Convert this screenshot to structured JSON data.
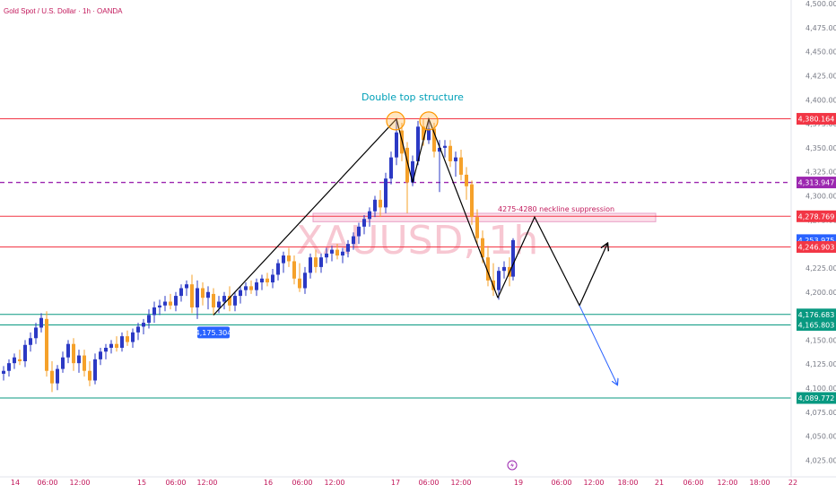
{
  "header": {
    "symbol_title": "Gold Spot / U.S. Dollar · 1h · OANDA"
  },
  "watermark": "XAUUSD, 1h",
  "chart_data": {
    "type": "candlestick",
    "timeframe": "1h",
    "ylim": [
      4018,
      4500
    ],
    "y_ticks": [
      "4,500.000",
      "4,475.000",
      "4,450.000",
      "4,425.000",
      "4,400.000",
      "4,375.000",
      "4,350.000",
      "4,325.000",
      "4,300.000",
      "4,275.000",
      "4,250.000",
      "4,225.000",
      "4,200.000",
      "4,175.000",
      "4,150.000",
      "4,125.000",
      "4,100.000",
      "4,075.000",
      "4,050.000",
      "4,025.000"
    ],
    "x_ticks": [
      {
        "label": "14",
        "t": 17
      },
      {
        "label": "06:00",
        "t": 53
      },
      {
        "label": "12:00",
        "t": 89
      },
      {
        "label": "15",
        "t": 158
      },
      {
        "label": "06:00",
        "t": 196
      },
      {
        "label": "12:00",
        "t": 231
      },
      {
        "label": "16",
        "t": 299
      },
      {
        "label": "06:00",
        "t": 337
      },
      {
        "label": "12:00",
        "t": 373
      },
      {
        "label": "17",
        "t": 441
      },
      {
        "label": "06:00",
        "t": 478
      },
      {
        "label": "12:00",
        "t": 514
      },
      {
        "label": "19",
        "t": 578
      },
      {
        "label": "06:00",
        "t": 626
      },
      {
        "label": "12:00",
        "t": 662
      },
      {
        "label": "18:00",
        "t": 700
      },
      {
        "label": "21",
        "t": 735
      },
      {
        "label": "06:00",
        "t": 773
      },
      {
        "label": "12:00",
        "t": 811
      },
      {
        "label": "18:00",
        "t": 847
      },
      {
        "label": "22",
        "t": 884
      }
    ],
    "price_levels": [
      {
        "price": 4380.164,
        "label": "4,380.164",
        "color": "#f23645",
        "style": "solid"
      },
      {
        "price": 4313.947,
        "label": "4,313.947",
        "color": "#9c27b0",
        "style": "dashed"
      },
      {
        "price": 4278.769,
        "label": "4,278.769",
        "color": "#f23645",
        "style": "solid"
      },
      {
        "price": 4253.975,
        "label": "4,253.975",
        "color": "#2962ff",
        "style": "none"
      },
      {
        "price": 4246.903,
        "label": "4,246.903",
        "color": "#f23645",
        "style": "solid"
      },
      {
        "price": 4176.683,
        "label": "4,176.683",
        "color": "#089981",
        "style": "solid"
      },
      {
        "price": 4165.803,
        "label": "4,165.803",
        "color": "#089981",
        "style": "solid"
      },
      {
        "price": 4089.772,
        "label": "4,089.772",
        "color": "#089981",
        "style": "solid"
      }
    ],
    "candles": [
      {
        "t": 4,
        "o": 4115,
        "h": 4123,
        "l": 4108,
        "c": 4118
      },
      {
        "t": 10,
        "o": 4118,
        "h": 4130,
        "l": 4112,
        "c": 4126
      },
      {
        "t": 16,
        "o": 4126,
        "h": 4136,
        "l": 4120,
        "c": 4132
      },
      {
        "t": 22,
        "o": 4130,
        "h": 4140,
        "l": 4124,
        "c": 4128
      },
      {
        "t": 28,
        "o": 4128,
        "h": 4150,
        "l": 4122,
        "c": 4145
      },
      {
        "t": 34,
        "o": 4145,
        "h": 4158,
        "l": 4138,
        "c": 4152
      },
      {
        "t": 40,
        "o": 4152,
        "h": 4168,
        "l": 4146,
        "c": 4163
      },
      {
        "t": 46,
        "o": 4163,
        "h": 4178,
        "l": 4158,
        "c": 4173
      },
      {
        "t": 52,
        "o": 4172,
        "h": 4180,
        "l": 4112,
        "c": 4118
      },
      {
        "t": 58,
        "o": 4118,
        "h": 4128,
        "l": 4096,
        "c": 4105
      },
      {
        "t": 64,
        "o": 4105,
        "h": 4124,
        "l": 4098,
        "c": 4120
      },
      {
        "t": 70,
        "o": 4120,
        "h": 4138,
        "l": 4116,
        "c": 4132
      },
      {
        "t": 76,
        "o": 4132,
        "h": 4150,
        "l": 4126,
        "c": 4146
      },
      {
        "t": 82,
        "o": 4146,
        "h": 4152,
        "l": 4118,
        "c": 4126
      },
      {
        "t": 88,
        "o": 4126,
        "h": 4140,
        "l": 4116,
        "c": 4134
      },
      {
        "t": 94,
        "o": 4134,
        "h": 4140,
        "l": 4112,
        "c": 4118
      },
      {
        "t": 100,
        "o": 4118,
        "h": 4128,
        "l": 4102,
        "c": 4108
      },
      {
        "t": 106,
        "o": 4108,
        "h": 4136,
        "l": 4104,
        "c": 4130
      },
      {
        "t": 112,
        "o": 4130,
        "h": 4142,
        "l": 4124,
        "c": 4138
      },
      {
        "t": 118,
        "o": 4138,
        "h": 4146,
        "l": 4130,
        "c": 4142
      },
      {
        "t": 124,
        "o": 4142,
        "h": 4150,
        "l": 4136,
        "c": 4146
      },
      {
        "t": 130,
        "o": 4146,
        "h": 4154,
        "l": 4138,
        "c": 4142
      },
      {
        "t": 136,
        "o": 4142,
        "h": 4158,
        "l": 4138,
        "c": 4154
      },
      {
        "t": 142,
        "o": 4154,
        "h": 4160,
        "l": 4144,
        "c": 4148
      },
      {
        "t": 148,
        "o": 4148,
        "h": 4162,
        "l": 4142,
        "c": 4158
      },
      {
        "t": 154,
        "o": 4158,
        "h": 4168,
        "l": 4150,
        "c": 4164
      },
      {
        "t": 160,
        "o": 4164,
        "h": 4172,
        "l": 4156,
        "c": 4168
      },
      {
        "t": 166,
        "o": 4168,
        "h": 4182,
        "l": 4162,
        "c": 4176
      },
      {
        "t": 172,
        "o": 4176,
        "h": 4190,
        "l": 4168,
        "c": 4184
      },
      {
        "t": 178,
        "o": 4184,
        "h": 4192,
        "l": 4176,
        "c": 4186
      },
      {
        "t": 184,
        "o": 4186,
        "h": 4196,
        "l": 4180,
        "c": 4190
      },
      {
        "t": 190,
        "o": 4190,
        "h": 4198,
        "l": 4182,
        "c": 4186
      },
      {
        "t": 196,
        "o": 4186,
        "h": 4200,
        "l": 4180,
        "c": 4196
      },
      {
        "t": 202,
        "o": 4196,
        "h": 4208,
        "l": 4190,
        "c": 4204
      },
      {
        "t": 208,
        "o": 4204,
        "h": 4212,
        "l": 4196,
        "c": 4208
      },
      {
        "t": 214,
        "o": 4208,
        "h": 4218,
        "l": 4178,
        "c": 4184
      },
      {
        "t": 220,
        "o": 4184,
        "h": 4212,
        "l": 4172,
        "c": 4204
      },
      {
        "t": 226,
        "o": 4204,
        "h": 4210,
        "l": 4186,
        "c": 4194
      },
      {
        "t": 232,
        "o": 4194,
        "h": 4206,
        "l": 4182,
        "c": 4200
      },
      {
        "t": 238,
        "o": 4198,
        "h": 4204,
        "l": 4176,
        "c": 4184
      },
      {
        "t": 244,
        "o": 4184,
        "h": 4196,
        "l": 4178,
        "c": 4190
      },
      {
        "t": 250,
        "o": 4190,
        "h": 4200,
        "l": 4182,
        "c": 4196
      },
      {
        "t": 256,
        "o": 4196,
        "h": 4206,
        "l": 4180,
        "c": 4186
      },
      {
        "t": 262,
        "o": 4186,
        "h": 4200,
        "l": 4180,
        "c": 4196
      },
      {
        "t": 268,
        "o": 4196,
        "h": 4206,
        "l": 4188,
        "c": 4202
      },
      {
        "t": 274,
        "o": 4202,
        "h": 4210,
        "l": 4196,
        "c": 4206
      },
      {
        "t": 280,
        "o": 4206,
        "h": 4212,
        "l": 4198,
        "c": 4202
      },
      {
        "t": 286,
        "o": 4202,
        "h": 4214,
        "l": 4196,
        "c": 4210
      },
      {
        "t": 292,
        "o": 4210,
        "h": 4218,
        "l": 4202,
        "c": 4214
      },
      {
        "t": 298,
        "o": 4214,
        "h": 4220,
        "l": 4206,
        "c": 4210
      },
      {
        "t": 304,
        "o": 4210,
        "h": 4224,
        "l": 4204,
        "c": 4218
      },
      {
        "t": 310,
        "o": 4218,
        "h": 4234,
        "l": 4212,
        "c": 4230
      },
      {
        "t": 316,
        "o": 4230,
        "h": 4242,
        "l": 4220,
        "c": 4238
      },
      {
        "t": 322,
        "o": 4238,
        "h": 4246,
        "l": 4226,
        "c": 4232
      },
      {
        "t": 328,
        "o": 4232,
        "h": 4238,
        "l": 4208,
        "c": 4214
      },
      {
        "t": 334,
        "o": 4214,
        "h": 4230,
        "l": 4200,
        "c": 4204
      },
      {
        "t": 340,
        "o": 4204,
        "h": 4226,
        "l": 4198,
        "c": 4220
      },
      {
        "t": 346,
        "o": 4220,
        "h": 4240,
        "l": 4214,
        "c": 4236
      },
      {
        "t": 352,
        "o": 4236,
        "h": 4244,
        "l": 4220,
        "c": 4226
      },
      {
        "t": 358,
        "o": 4226,
        "h": 4240,
        "l": 4220,
        "c": 4236
      },
      {
        "t": 364,
        "o": 4236,
        "h": 4246,
        "l": 4230,
        "c": 4240
      },
      {
        "t": 370,
        "o": 4240,
        "h": 4248,
        "l": 4232,
        "c": 4244
      },
      {
        "t": 376,
        "o": 4244,
        "h": 4250,
        "l": 4234,
        "c": 4238
      },
      {
        "t": 382,
        "o": 4238,
        "h": 4246,
        "l": 4230,
        "c": 4242
      },
      {
        "t": 388,
        "o": 4242,
        "h": 4254,
        "l": 4236,
        "c": 4250
      },
      {
        "t": 394,
        "o": 4250,
        "h": 4262,
        "l": 4244,
        "c": 4258
      },
      {
        "t": 400,
        "o": 4258,
        "h": 4272,
        "l": 4250,
        "c": 4268
      },
      {
        "t": 406,
        "o": 4268,
        "h": 4280,
        "l": 4260,
        "c": 4276
      },
      {
        "t": 412,
        "o": 4276,
        "h": 4288,
        "l": 4268,
        "c": 4284
      },
      {
        "t": 418,
        "o": 4284,
        "h": 4300,
        "l": 4278,
        "c": 4296
      },
      {
        "t": 424,
        "o": 4296,
        "h": 4306,
        "l": 4278,
        "c": 4288
      },
      {
        "t": 430,
        "o": 4288,
        "h": 4324,
        "l": 4282,
        "c": 4318
      },
      {
        "t": 436,
        "o": 4318,
        "h": 4346,
        "l": 4312,
        "c": 4340
      },
      {
        "t": 442,
        "o": 4340,
        "h": 4380,
        "l": 4332,
        "c": 4366
      },
      {
        "t": 448,
        "o": 4368,
        "h": 4376,
        "l": 4336,
        "c": 4344
      },
      {
        "t": 454,
        "o": 4350,
        "h": 4356,
        "l": 4282,
        "c": 4314
      },
      {
        "t": 460,
        "o": 4314,
        "h": 4342,
        "l": 4310,
        "c": 4336
      },
      {
        "t": 466,
        "o": 4336,
        "h": 4378,
        "l": 4332,
        "c": 4372
      },
      {
        "t": 472,
        "o": 4372,
        "h": 4380,
        "l": 4352,
        "c": 4358
      },
      {
        "t": 478,
        "o": 4358,
        "h": 4378,
        "l": 4354,
        "c": 4370
      },
      {
        "t": 484,
        "o": 4370,
        "h": 4376,
        "l": 4340,
        "c": 4346
      },
      {
        "t": 490,
        "o": 4346,
        "h": 4358,
        "l": 4304,
        "c": 4350
      },
      {
        "t": 496,
        "o": 4350,
        "h": 4358,
        "l": 4340,
        "c": 4352
      },
      {
        "t": 502,
        "o": 4352,
        "h": 4358,
        "l": 4330,
        "c": 4336
      },
      {
        "t": 508,
        "o": 4336,
        "h": 4346,
        "l": 4320,
        "c": 4340
      },
      {
        "t": 514,
        "o": 4340,
        "h": 4348,
        "l": 4316,
        "c": 4322
      },
      {
        "t": 520,
        "o": 4322,
        "h": 4330,
        "l": 4296,
        "c": 4310
      },
      {
        "t": 526,
        "o": 4312,
        "h": 4316,
        "l": 4270,
        "c": 4278
      },
      {
        "t": 532,
        "o": 4278,
        "h": 4286,
        "l": 4250,
        "c": 4256
      },
      {
        "t": 538,
        "o": 4256,
        "h": 4264,
        "l": 4230,
        "c": 4236
      },
      {
        "t": 544,
        "o": 4236,
        "h": 4248,
        "l": 4206,
        "c": 4212
      },
      {
        "t": 550,
        "o": 4212,
        "h": 4230,
        "l": 4196,
        "c": 4202
      },
      {
        "t": 556,
        "o": 4202,
        "h": 4226,
        "l": 4192,
        "c": 4222
      },
      {
        "t": 562,
        "o": 4222,
        "h": 4232,
        "l": 4214,
        "c": 4226
      },
      {
        "t": 568,
        "o": 4226,
        "h": 4236,
        "l": 4206,
        "c": 4216
      },
      {
        "t": 572,
        "o": 4216,
        "h": 4256,
        "l": 4212,
        "c": 4254
      }
    ],
    "projection_path": [
      [
        555,
        4194
      ],
      [
        596,
        4278
      ],
      [
        646,
        4186
      ],
      [
        677,
        4250
      ]
    ],
    "projection_arrow": [
      [
        646,
        4186
      ],
      [
        688,
        4104
      ]
    ],
    "pattern_lines": [
      [
        238,
        4176
      ],
      [
        442,
        4380
      ],
      [
        460,
        4314
      ],
      [
        478,
        4380
      ],
      [
        555,
        4194
      ]
    ],
    "neckline_zone": {
      "t_start": 349,
      "t_end": 731,
      "top": 4280,
      "bottom": 4275,
      "label": "4275-4280 neckline suppression"
    },
    "double_top": {
      "label": "Double top structure",
      "peaks": [
        {
          "t": 441,
          "p": 4378
        },
        {
          "t": 478,
          "p": 4378
        }
      ]
    },
    "low_marker": {
      "t": 238,
      "p": 4164,
      "label": "4,175.304"
    }
  }
}
